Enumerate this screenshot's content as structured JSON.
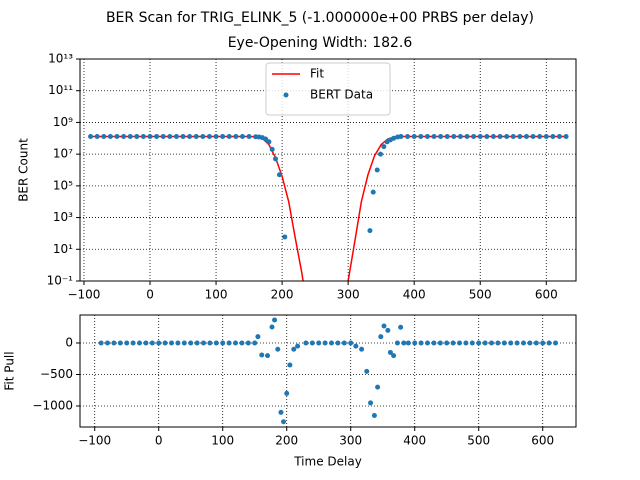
{
  "chart_data": [
    {
      "type": "combo",
      "title": "BER Scan for TRIG_ELINK_5 (-1.000000e+00 PRBS per delay)",
      "subtitle": "Eye-Opening Width: 182.6",
      "y_label": "BER Count",
      "log_y": true,
      "grid": true,
      "legend": "upper center",
      "xlim": [
        -106,
        645
      ],
      "xticks": [
        {
          "value": -100,
          "label": "−100"
        },
        0,
        100,
        200,
        300,
        400,
        500,
        600
      ],
      "ylim": [
        0.1,
        10000000000000
      ],
      "yticks": [
        {
          "value": 0.1,
          "label": "10⁻¹"
        },
        {
          "value": 10,
          "label": "10¹"
        },
        {
          "value": 1000,
          "label": "10³"
        },
        {
          "value": 100000,
          "label": "10⁵"
        },
        {
          "value": 10000000,
          "label": "10⁷"
        },
        {
          "value": 1000000000,
          "label": "10⁹"
        },
        {
          "value": 100000000000,
          "label": "10¹¹"
        },
        {
          "value": 10000000000000,
          "label": "10¹³"
        }
      ],
      "series": [
        {
          "name": "Fit",
          "type": "line",
          "color": "#ff0000",
          "x": [
            -90,
            -80,
            -70,
            -60,
            -50,
            -40,
            -30,
            -20,
            -10,
            0,
            10,
            20,
            30,
            40,
            50,
            60,
            70,
            80,
            90,
            100,
            110,
            120,
            130,
            140,
            150,
            160,
            170,
            180,
            190,
            200,
            210,
            220,
            230,
            240,
            265,
            290,
            300,
            310,
            320,
            330,
            340,
            350,
            360,
            370,
            380,
            390,
            400,
            410,
            420,
            430,
            440,
            450,
            460,
            470,
            480,
            490,
            500,
            510,
            520,
            530,
            540,
            550,
            560,
            570,
            580,
            590,
            600,
            610,
            620,
            630
          ],
          "values": [
            130000000,
            130000000,
            130000000,
            130000000,
            130000000,
            130000000,
            130000000,
            130000000,
            130000000,
            130000000,
            130000000,
            130000000,
            130000000,
            130000000,
            130000000,
            130000000,
            130000000,
            130000000,
            130000000,
            130000000,
            130000000,
            130000000,
            130000000,
            130000000,
            130000000,
            125000000,
            100000000,
            40000000,
            6000000,
            400000,
            10000,
            50,
            0.3,
            0.0005,
            null,
            0.0005,
            0.1,
            30,
            10000,
            500000,
            8000000,
            40000000,
            90000000,
            120000000,
            130000000,
            130000000,
            130000000,
            130000000,
            130000000,
            130000000,
            130000000,
            130000000,
            130000000,
            130000000,
            130000000,
            130000000,
            130000000,
            130000000,
            130000000,
            130000000,
            130000000,
            130000000,
            130000000,
            130000000,
            130000000,
            130000000,
            130000000,
            130000000,
            130000000,
            130000000
          ]
        },
        {
          "name": "BERT Data",
          "type": "scatter",
          "color": "#1f77b4",
          "x": [
            -90,
            -80,
            -70,
            -60,
            -50,
            -40,
            -30,
            -20,
            -10,
            0,
            10,
            20,
            30,
            40,
            50,
            60,
            70,
            80,
            90,
            100,
            110,
            120,
            130,
            140,
            150,
            160,
            165,
            170,
            175,
            180,
            185,
            190,
            196,
            204,
            333,
            338,
            344,
            349,
            354,
            359,
            364,
            369,
            375,
            380,
            390,
            400,
            410,
            420,
            430,
            440,
            450,
            460,
            470,
            480,
            490,
            500,
            510,
            520,
            530,
            540,
            550,
            560,
            570,
            580,
            590,
            600,
            610,
            620,
            630
          ],
          "values": [
            130000000,
            130000000,
            130000000,
            130000000,
            130000000,
            130000000,
            130000000,
            130000000,
            130000000,
            130000000,
            130000000,
            130000000,
            130000000,
            130000000,
            130000000,
            130000000,
            130000000,
            130000000,
            130000000,
            130000000,
            130000000,
            130000000,
            130000000,
            130000000,
            130000000,
            125000000,
            120000000,
            110000000,
            90000000,
            60000000,
            20000000,
            5000000,
            500000,
            60,
            150,
            40000,
            1000000,
            10000000,
            30000000,
            60000000,
            80000000,
            100000000,
            120000000,
            130000000,
            130000000,
            130000000,
            130000000,
            130000000,
            130000000,
            130000000,
            130000000,
            130000000,
            130000000,
            130000000,
            130000000,
            130000000,
            130000000,
            130000000,
            130000000,
            130000000,
            130000000,
            130000000,
            130000000,
            130000000,
            130000000,
            130000000,
            130000000,
            130000000,
            130000000
          ]
        }
      ]
    },
    {
      "type": "scatter",
      "x_label": "Time Delay",
      "y_label": "Fit Pull",
      "grid": true,
      "xlim": [
        -123,
        652
      ],
      "xticks": [
        {
          "value": -100,
          "label": "−100"
        },
        0,
        100,
        200,
        300,
        400,
        500,
        600
      ],
      "ylim": [
        -1333,
        444
      ],
      "yticks": [
        0,
        {
          "value": -500,
          "label": "−500"
        },
        {
          "value": -1000,
          "label": "−1000"
        }
      ],
      "series": [
        {
          "type": "scatter",
          "color": "#1f77b4",
          "x": [
            -90,
            -80,
            -70,
            -60,
            -50,
            -40,
            -30,
            -20,
            -10,
            0,
            10,
            20,
            30,
            40,
            50,
            60,
            70,
            80,
            90,
            100,
            110,
            120,
            130,
            140,
            150,
            155,
            161,
            170,
            177,
            181,
            186,
            191,
            195,
            200,
            205,
            211,
            217,
            230,
            240,
            250,
            260,
            270,
            280,
            290,
            300,
            308,
            317,
            325,
            331,
            337,
            342,
            347,
            352,
            358,
            362,
            367,
            373,
            378,
            383,
            390,
            400,
            410,
            420,
            430,
            440,
            450,
            460,
            470,
            480,
            490,
            500,
            510,
            520,
            530,
            540,
            550,
            560,
            570,
            580,
            590,
            600,
            610,
            620
          ],
          "values": [
            0,
            0,
            0,
            0,
            0,
            0,
            0,
            0,
            0,
            0,
            0,
            0,
            0,
            0,
            0,
            0,
            0,
            0,
            0,
            0,
            0,
            0,
            0,
            0,
            0,
            100,
            -190,
            -200,
            254,
            365,
            -100,
            -1100,
            -1250,
            -800,
            -350,
            -100,
            -50,
            0,
            0,
            0,
            0,
            0,
            0,
            0,
            0,
            -50,
            -100,
            -450,
            -950,
            -1150,
            -700,
            100,
            270,
            200,
            -150,
            -200,
            0,
            250,
            0,
            0,
            0,
            0,
            0,
            0,
            0,
            0,
            0,
            0,
            0,
            0,
            0,
            0,
            0,
            0,
            0,
            0,
            0,
            0,
            0,
            0,
            0,
            0,
            0
          ]
        }
      ]
    }
  ]
}
